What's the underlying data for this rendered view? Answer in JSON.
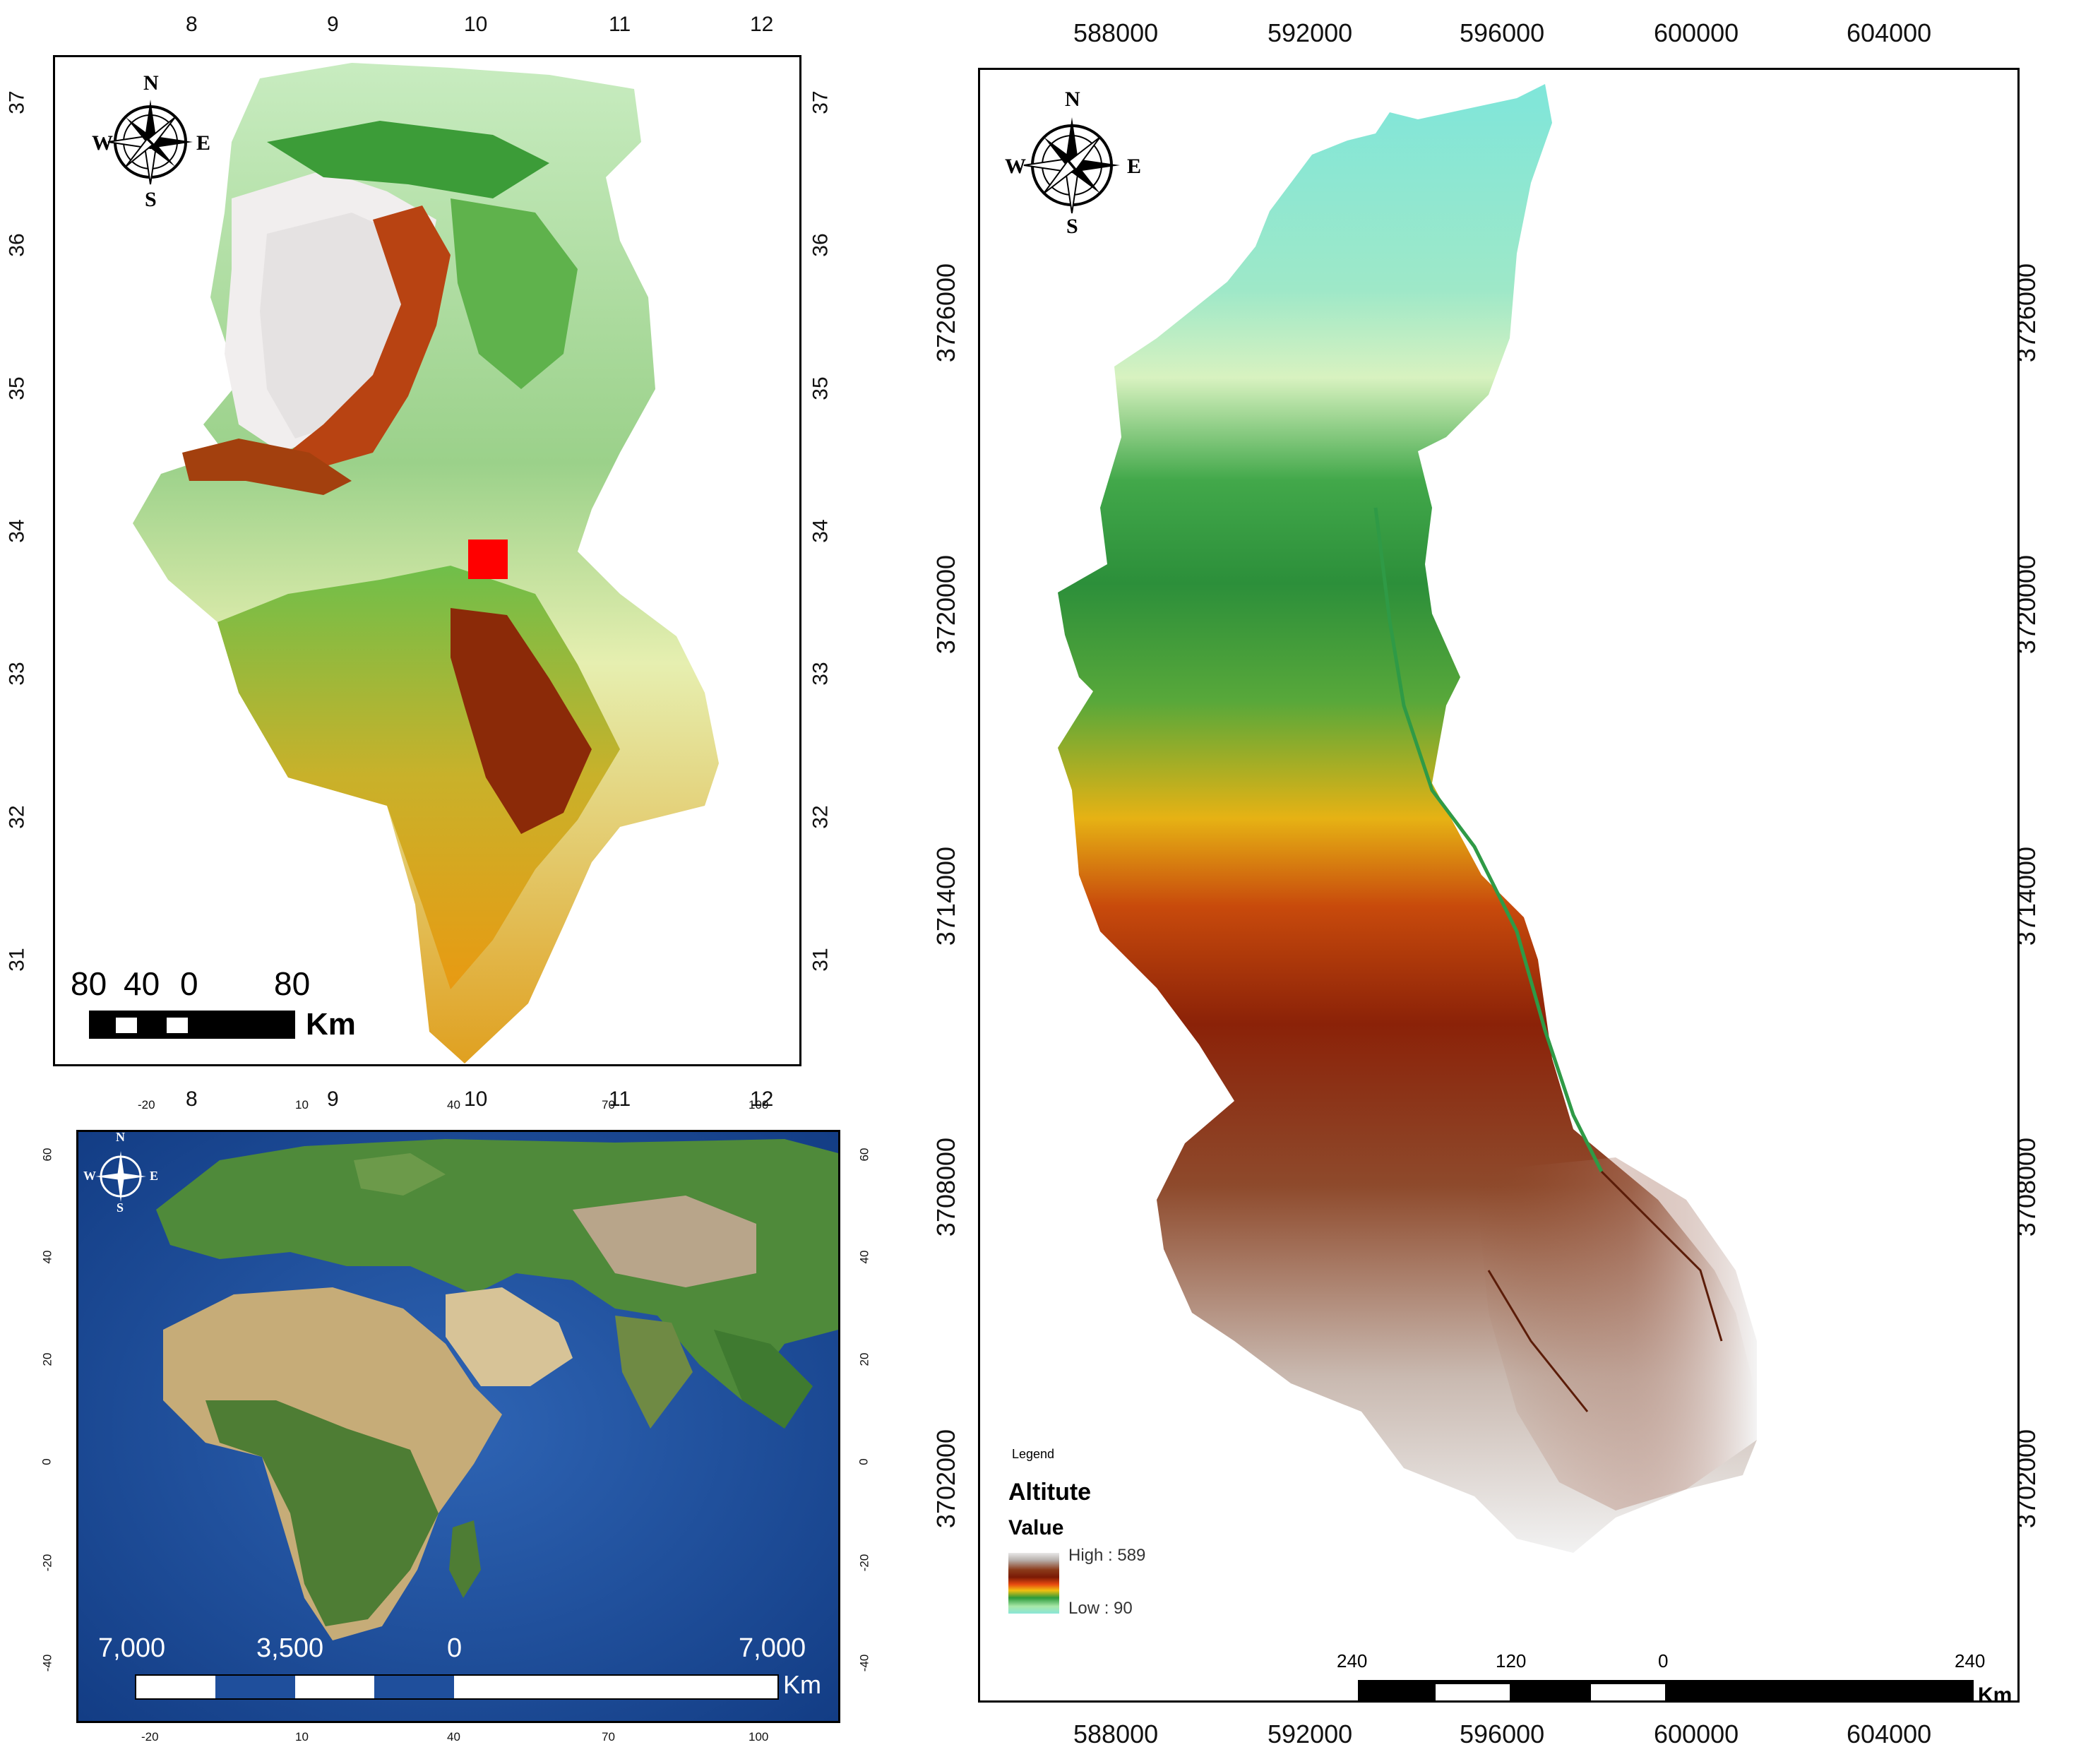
{
  "tunisia_map": {
    "lon_ticks": [
      "8",
      "9",
      "10",
      "11",
      "12"
    ],
    "lat_ticks": [
      "37",
      "36",
      "35",
      "34",
      "33",
      "32",
      "31"
    ],
    "compass": {
      "n": "N",
      "s": "S",
      "e": "E",
      "w": "W"
    },
    "scale_labels": [
      "80",
      "40",
      "0",
      "80"
    ],
    "scale_unit": "Km",
    "study_area_marker_color": "#ff0000"
  },
  "world_map": {
    "top_ticks": [
      "-20",
      "10",
      "40",
      "70",
      "100"
    ],
    "bottom_ticks": [
      "-20",
      "10",
      "40",
      "70",
      "100"
    ],
    "lat_ticks": [
      "60",
      "40",
      "20",
      "0",
      "-20",
      "-40"
    ],
    "compass": {
      "n": "N",
      "s": "S",
      "e": "E",
      "w": "W"
    },
    "scale_labels": [
      "7,000",
      "3,500",
      "0",
      "7,000"
    ],
    "scale_unit": "Km"
  },
  "watershed_map": {
    "x_ticks": [
      "588000",
      "592000",
      "596000",
      "600000",
      "604000"
    ],
    "y_ticks": [
      "3726000",
      "3720000",
      "3714000",
      "3708000",
      "3702000"
    ],
    "compass": {
      "n": "N",
      "s": "S",
      "e": "E",
      "w": "W"
    },
    "legend": {
      "heading": "Legend",
      "title": "Altitute",
      "subtitle": "Value",
      "high": "High : 589",
      "low": "Low : 90"
    },
    "scale_labels": [
      "240",
      "120",
      "0",
      "240"
    ],
    "scale_unit": "Km"
  }
}
